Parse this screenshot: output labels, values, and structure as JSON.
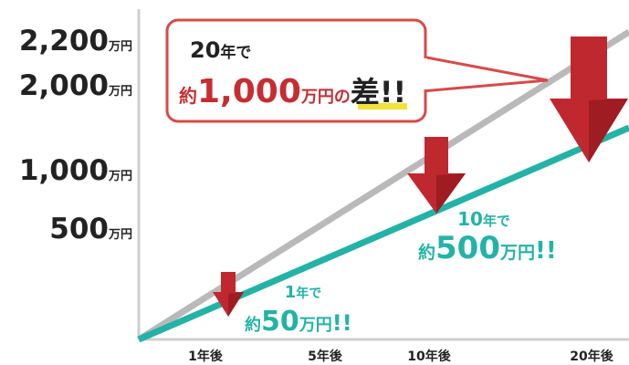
{
  "y_axis_labels": [
    {
      "number": "2,200",
      "unit": "万円"
    },
    {
      "number": "2,000",
      "unit": "万円"
    },
    {
      "number": "1,000",
      "unit": "万円"
    },
    {
      "number": "500",
      "unit": "万円"
    }
  ],
  "x_axis_labels": [
    "1年後",
    "5年後",
    "10年後",
    "20年後"
  ],
  "callout_20": {
    "period_number": "20",
    "period_unit": "年で",
    "prefix": "約",
    "amount": "1,000",
    "unit": "万円の",
    "word": "差",
    "exclaim": "!!"
  },
  "callout_10": {
    "period_number": "10",
    "period_unit": "年で",
    "prefix": "約",
    "amount": "500",
    "unit": "万円",
    "exclaim": "!!"
  },
  "callout_1": {
    "period_number": "1",
    "period_unit": "年で",
    "prefix": "約",
    "amount": "50",
    "unit": "万円",
    "exclaim": "!!"
  }
}
